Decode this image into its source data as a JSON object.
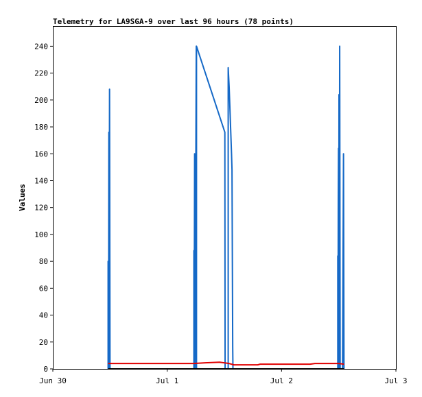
{
  "chart_data": {
    "type": "line",
    "title": "Telemetry for LA9SGA-9 over last 96 hours (78 points)",
    "xlabel": "",
    "ylabel": "Values",
    "x_unit": "hours",
    "xlim": [
      0,
      72
    ],
    "ylim": [
      0,
      255
    ],
    "x_ticks": [
      {
        "value": 0,
        "label": "Jun 30"
      },
      {
        "value": 24,
        "label": "Jul 1"
      },
      {
        "value": 48,
        "label": "Jul 2"
      },
      {
        "value": 72,
        "label": "Jul 3"
      }
    ],
    "y_ticks": [
      0,
      20,
      40,
      60,
      80,
      100,
      120,
      140,
      160,
      180,
      200,
      220,
      240
    ],
    "grid": false,
    "legend": "none",
    "series": [
      {
        "color": "#1569c7",
        "points": [
          [
            11.6,
            0
          ],
          [
            11.6,
            80
          ],
          [
            11.7,
            0
          ],
          [
            11.75,
            176
          ],
          [
            11.8,
            0
          ],
          [
            11.9,
            208
          ],
          [
            12.0,
            0
          ],
          [
            29.6,
            0
          ],
          [
            29.6,
            88
          ],
          [
            29.65,
            0
          ],
          [
            29.75,
            160
          ],
          [
            29.85,
            0
          ],
          [
            30.1,
            240
          ],
          [
            30.15,
            0
          ],
          [
            30.15,
            240
          ],
          [
            36.1,
            176
          ],
          [
            36.15,
            0
          ],
          [
            36.8,
            0
          ],
          [
            36.8,
            224
          ],
          [
            37.0,
            210
          ],
          [
            37.3,
            180
          ],
          [
            37.5,
            160
          ],
          [
            37.6,
            148
          ],
          [
            37.75,
            16
          ],
          [
            37.8,
            0
          ],
          [
            59.8,
            0
          ],
          [
            59.8,
            84
          ],
          [
            59.85,
            0
          ],
          [
            59.9,
            124
          ],
          [
            59.95,
            164
          ],
          [
            60.0,
            0
          ],
          [
            60.05,
            204
          ],
          [
            60.1,
            0
          ],
          [
            60.2,
            240
          ],
          [
            60.3,
            0
          ],
          [
            60.8,
            0
          ],
          [
            60.9,
            80
          ],
          [
            61.0,
            160
          ],
          [
            61.1,
            0
          ]
        ]
      },
      {
        "color": "#e00000",
        "points": [
          [
            11.6,
            4
          ],
          [
            29.6,
            4
          ],
          [
            32.0,
            4.5
          ],
          [
            35.0,
            5
          ],
          [
            37.0,
            4
          ],
          [
            38.0,
            3
          ],
          [
            43.0,
            3
          ],
          [
            43.5,
            3.5
          ],
          [
            54.0,
            3.5
          ],
          [
            55.0,
            4
          ],
          [
            60.0,
            4
          ],
          [
            61.1,
            3.5
          ]
        ]
      },
      {
        "color": "#000000",
        "points": [
          [
            11.6,
            0
          ],
          [
            61.1,
            0
          ]
        ]
      }
    ]
  }
}
